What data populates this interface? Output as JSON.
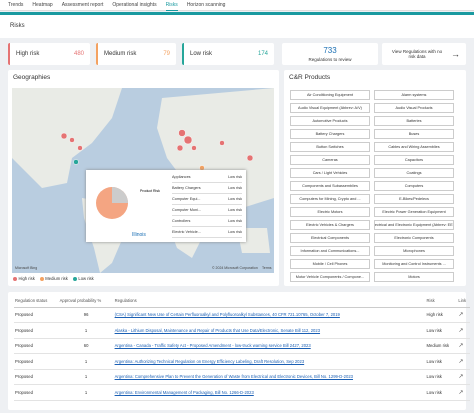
{
  "nav": {
    "tabs": [
      "Trends",
      "Heatmap",
      "Assessment report",
      "Operational insights",
      "Risks",
      "Horizon scanning"
    ],
    "active": 4
  },
  "header": {
    "title": "Risks"
  },
  "kpis": [
    {
      "label": "High risk",
      "value": 480,
      "color": "#e57373"
    },
    {
      "label": "Medium risk",
      "value": 79,
      "color": "#f4a261"
    },
    {
      "label": "Low risk",
      "value": 174,
      "color": "#26a69a"
    }
  ],
  "review": {
    "value": 733,
    "label": "Regulations to review"
  },
  "no_risk_link": "View Regulations with no risk data",
  "geographies": {
    "title": "Geographies",
    "popup": {
      "title": "Illinois",
      "pie_title": "Product Risk",
      "items": [
        {
          "name": "Appliances",
          "risk": "Low risk"
        },
        {
          "name": "Battery Chargers",
          "risk": "Low risk"
        },
        {
          "name": "Computer Equi...",
          "risk": "Low risk"
        },
        {
          "name": "Computer Moni...",
          "risk": "Low risk"
        },
        {
          "name": "Controllers",
          "risk": "Low risk"
        },
        {
          "name": "Electric Vehicle...",
          "risk": "Low risk"
        }
      ]
    },
    "legend": [
      {
        "name": "High risk",
        "color": "#e57373"
      },
      {
        "name": "Medium risk",
        "color": "#f4a261"
      },
      {
        "name": "Low risk",
        "color": "#26a69a"
      }
    ],
    "attribution": "© 2024 Microsoft Corporation",
    "terms": "Terms",
    "brand": "Microsoft Bing"
  },
  "products": {
    "title": "C&R Products",
    "items": [
      "Air Conditioning Equipment",
      "Alarm systems",
      "Audio Visual Equipment (Abbrev: A/V)",
      "Audio Visual Products",
      "Automotive Products",
      "Batteries",
      "Battery Chargers",
      "Buses",
      "Button Switches",
      "Cables and Wiring Assemblies",
      "Cameras",
      "Capacitors",
      "Cars / Light Vehicles",
      "Coatings",
      "Components and Subassemblies",
      "Computers",
      "Computers for Mining, Crypto and ...",
      "E-Bikes/Pedelecs",
      "Electric Motors",
      "Electric Power Generation Equipment",
      "Electric Vehicles & Chargers",
      "Electrical and Electronic Equipment (Abbrev: EEE)",
      "Electrical Components",
      "Electronic Components",
      "Information and Communications...",
      "Microphones",
      "Mobile / Cell Phones",
      "Monitoring and Control Instruments ...",
      "Motor Vehicle Components / Compone...",
      "Motors"
    ]
  },
  "table": {
    "columns": [
      "Regulation status",
      "Approval probability %",
      "Regulations",
      "Risk",
      "Link"
    ],
    "rows": [
      [
        "Proposed",
        "96",
        "(CSA) Significant New Use of Certain Perfluoroalkyl and Polyfluoroalkyl Substances, 40 CFR 721.10765, October 7, 2019",
        "High risk"
      ],
      [
        "Proposed",
        "1",
        "Alaska - Lithium Disposal, Maintenance and Repair of Products that Use Data/Electronic, Senate Bill 112, 2023",
        "Low risk"
      ],
      [
        "Proposed",
        "60",
        "Argentina - Canada - Traffic Safety Act - Proposed Amendment - low-truck warning service Bill 2427, 2023",
        "Medium risk"
      ],
      [
        "Proposed",
        "1",
        "Argentina: Authorizing Technical Regulation on Energy Efficiency Labeling, Draft Resolution, Sep 2023",
        "Low risk"
      ],
      [
        "Proposed",
        "1",
        "Argentina: Comprehensive Plan to Prevent the Generation of Waste from Electrical and Electronic Devices, Bill No. 1299-D-2023",
        "Low risk"
      ],
      [
        "Proposed",
        "1",
        "Argentina: Environmental Management of Packaging, Bill No. 1266-D-2023",
        "Low risk"
      ]
    ]
  }
}
